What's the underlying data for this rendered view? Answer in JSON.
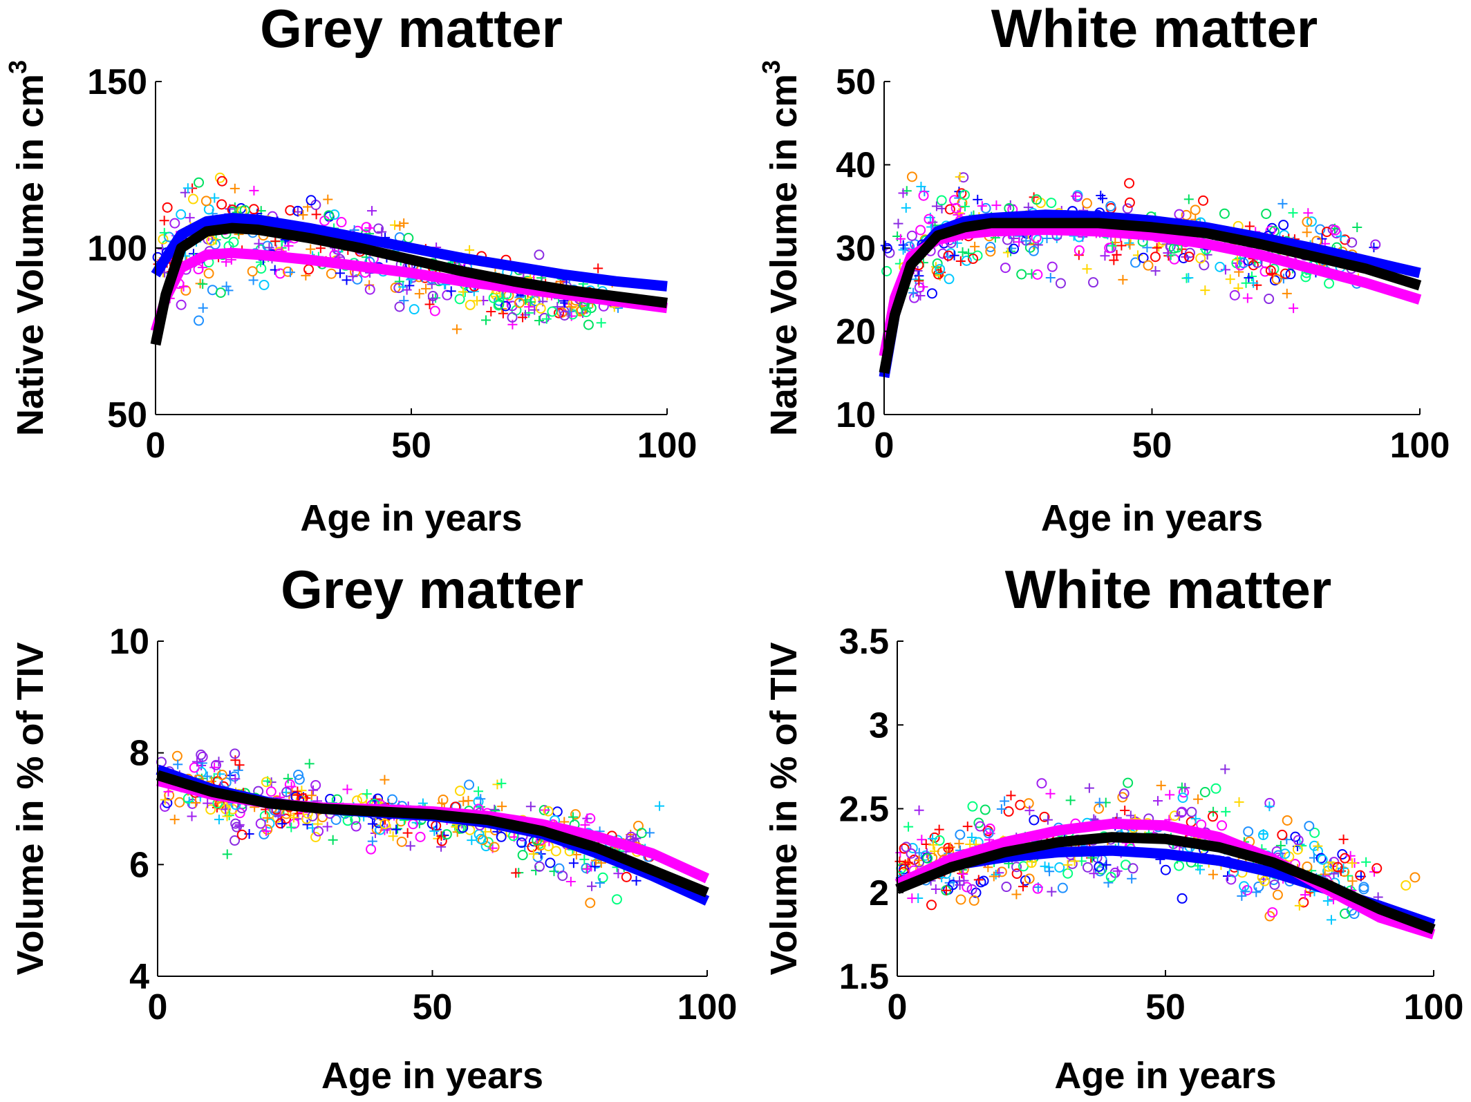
{
  "chart_data": [
    {
      "type": "scatter",
      "title": "Grey matter",
      "xlabel": "Age in years",
      "ylabel": "Native Volume in cm",
      "ylabel_superscript": "3",
      "xlim": [
        0,
        100
      ],
      "ylim": [
        50,
        150
      ],
      "xticks": [
        "0",
        "50",
        "100"
      ],
      "yticks": [
        "50",
        "100",
        "150"
      ],
      "scatter_cloud": [
        [
          2,
          95,
          8
        ],
        [
          12,
          105,
          12
        ],
        [
          25,
          103,
          11
        ],
        [
          40,
          98,
          10
        ],
        [
          55,
          91,
          8
        ],
        [
          70,
          87,
          8
        ],
        [
          82,
          84,
          7
        ]
      ],
      "series": [
        {
          "color": "#000000",
          "x": [
            0,
            2,
            5,
            10,
            15,
            20,
            30,
            40,
            50,
            60,
            70,
            80,
            90,
            100
          ],
          "y": [
            71,
            86,
            100,
            105,
            106,
            105.5,
            103,
            100,
            96.5,
            93,
            90,
            87.5,
            85.5,
            83.5
          ]
        },
        {
          "color": "#0000ff",
          "x": [
            0,
            2,
            5,
            10,
            15,
            20,
            30,
            40,
            50,
            60,
            70,
            80,
            90,
            100
          ],
          "y": [
            92,
            97,
            104,
            108,
            109,
            108.5,
            106,
            103,
            100,
            97,
            94.5,
            92,
            90,
            88.5
          ]
        },
        {
          "color": "#ff00ff",
          "x": [
            0,
            2,
            5,
            10,
            15,
            20,
            30,
            40,
            50,
            60,
            70,
            80,
            90,
            100
          ],
          "y": [
            75,
            85,
            94,
            98,
            98.5,
            98,
            96.5,
            94.5,
            92.5,
            90,
            88,
            86,
            84,
            82
          ]
        }
      ]
    },
    {
      "type": "scatter",
      "title": "White matter",
      "xlabel": "Age in years",
      "ylabel": "Native Volume in cm",
      "ylabel_superscript": "3",
      "xlim": [
        0,
        100
      ],
      "ylim": [
        10,
        50
      ],
      "xticks": [
        "0",
        "50",
        "100"
      ],
      "yticks": [
        "10",
        "20",
        "30",
        "40",
        "50"
      ],
      "scatter_cloud": [
        [
          3,
          28,
          3
        ],
        [
          12,
          33,
          4
        ],
        [
          25,
          32,
          4
        ],
        [
          40,
          32,
          4
        ],
        [
          55,
          30,
          4
        ],
        [
          70,
          29,
          4
        ],
        [
          82,
          29,
          4
        ]
      ],
      "series": [
        {
          "color": "#000000",
          "x": [
            0,
            2,
            5,
            10,
            15,
            20,
            30,
            40,
            50,
            60,
            70,
            80,
            90,
            100
          ],
          "y": [
            15,
            22,
            28,
            31.5,
            32.5,
            33,
            33,
            33,
            32.5,
            31.8,
            30.5,
            29,
            27.5,
            25.5
          ]
        },
        {
          "color": "#0000ff",
          "x": [
            0,
            2,
            5,
            10,
            15,
            20,
            30,
            40,
            50,
            60,
            70,
            80,
            90,
            100
          ],
          "y": [
            14.5,
            22,
            28.5,
            32,
            33.2,
            33.6,
            34,
            33.8,
            33.3,
            32.5,
            31.3,
            30,
            28.5,
            27
          ]
        },
        {
          "color": "#ff00ff",
          "x": [
            0,
            2,
            5,
            10,
            15,
            20,
            30,
            40,
            50,
            60,
            70,
            80,
            90,
            100
          ],
          "y": [
            17,
            24,
            29,
            31,
            31.7,
            32,
            32.2,
            32,
            31.5,
            30.5,
            29.2,
            27.5,
            25.8,
            23.8
          ]
        }
      ]
    },
    {
      "type": "scatter",
      "title": "Grey matter",
      "xlabel": "Age in years",
      "ylabel": "Volume in % of TIV",
      "xlim": [
        0,
        100
      ],
      "ylim": [
        4,
        10
      ],
      "xticks": [
        "0",
        "50",
        "100"
      ],
      "yticks": [
        "4",
        "6",
        "8",
        "10"
      ],
      "scatter_cloud": [
        [
          4,
          7.4,
          0.5
        ],
        [
          12,
          7.2,
          0.5
        ],
        [
          25,
          7.0,
          0.5
        ],
        [
          40,
          6.9,
          0.5
        ],
        [
          55,
          6.8,
          0.5
        ],
        [
          70,
          6.5,
          0.5
        ],
        [
          82,
          6.2,
          0.45
        ]
      ],
      "series": [
        {
          "color": "#000000",
          "x": [
            0,
            10,
            20,
            30,
            40,
            50,
            60,
            70,
            80,
            90,
            100
          ],
          "y": [
            7.6,
            7.3,
            7.1,
            7.0,
            6.95,
            6.9,
            6.8,
            6.6,
            6.3,
            5.9,
            5.5
          ]
        },
        {
          "color": "#0000ff",
          "x": [
            0,
            10,
            20,
            30,
            40,
            50,
            60,
            70,
            80,
            90,
            100
          ],
          "y": [
            7.7,
            7.35,
            7.12,
            7.0,
            6.93,
            6.87,
            6.75,
            6.55,
            6.2,
            5.8,
            5.35
          ]
        },
        {
          "color": "#ff00ff",
          "x": [
            0,
            10,
            20,
            30,
            40,
            50,
            60,
            70,
            80,
            90,
            100
          ],
          "y": [
            7.5,
            7.25,
            7.1,
            7.02,
            6.99,
            6.95,
            6.87,
            6.72,
            6.5,
            6.2,
            5.75
          ]
        }
      ]
    },
    {
      "type": "scatter",
      "title": "White matter",
      "xlabel": "Age in years",
      "ylabel": "Volume in % of TIV",
      "xlim": [
        0,
        100
      ],
      "ylim": [
        1.5,
        3.5
      ],
      "xticks": [
        "0",
        "50",
        "100"
      ],
      "yticks": [
        "1.5",
        "2",
        "2.5",
        "3",
        "3.5"
      ],
      "scatter_cloud": [
        [
          4,
          2.15,
          0.18
        ],
        [
          12,
          2.2,
          0.2
        ],
        [
          25,
          2.25,
          0.22
        ],
        [
          40,
          2.35,
          0.25
        ],
        [
          55,
          2.35,
          0.25
        ],
        [
          70,
          2.2,
          0.22
        ],
        [
          82,
          2.05,
          0.2
        ]
      ],
      "series": [
        {
          "color": "#000000",
          "x": [
            0,
            10,
            20,
            30,
            40,
            50,
            60,
            70,
            80,
            90,
            100
          ],
          "y": [
            2.02,
            2.15,
            2.24,
            2.3,
            2.33,
            2.32,
            2.27,
            2.18,
            2.05,
            1.9,
            1.78
          ]
        },
        {
          "color": "#0000ff",
          "x": [
            0,
            10,
            20,
            30,
            40,
            50,
            60,
            70,
            80,
            90,
            100
          ],
          "y": [
            2.06,
            2.16,
            2.21,
            2.24,
            2.25,
            2.23,
            2.19,
            2.12,
            2.02,
            1.92,
            1.81
          ]
        },
        {
          "color": "#ff00ff",
          "x": [
            0,
            10,
            20,
            30,
            40,
            50,
            60,
            70,
            80,
            90,
            100
          ],
          "y": [
            2.05,
            2.2,
            2.3,
            2.37,
            2.41,
            2.4,
            2.33,
            2.2,
            2.02,
            1.85,
            1.75
          ]
        }
      ]
    }
  ]
}
